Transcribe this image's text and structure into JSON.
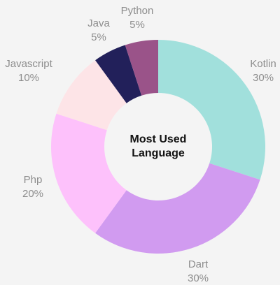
{
  "chart_data": {
    "type": "pie",
    "title": "Most Used Language",
    "title_lines": [
      "Most Used",
      "Language"
    ],
    "categories": [
      "Kotlin",
      "Dart",
      "Php",
      "Javascript",
      "Java",
      "Python"
    ],
    "values": [
      30,
      30,
      20,
      10,
      5,
      5
    ],
    "value_labels": [
      "30%",
      "30%",
      "20%",
      "10%",
      "5%",
      "5%"
    ],
    "colors": [
      "#a1e0dc",
      "#d19bf0",
      "#fdc1fb",
      "#fde4e7",
      "#22205a",
      "#9a5389"
    ],
    "hole": "donut",
    "legend": "none"
  }
}
